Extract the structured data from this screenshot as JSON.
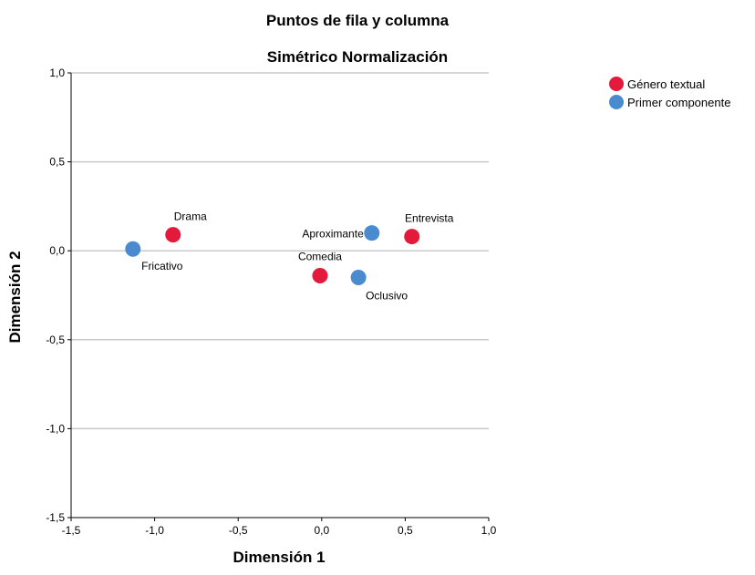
{
  "chart_data": {
    "type": "scatter",
    "title": "Puntos de fila y columna",
    "subtitle": "Simétrico Normalización",
    "xlabel": "Dimensión 1",
    "ylabel": "Dimensión 2",
    "xlim": [
      -1.5,
      1.0
    ],
    "ylim": [
      -1.5,
      1.0
    ],
    "xticks": [
      -1.5,
      -1.0,
      -0.5,
      0.0,
      0.5,
      1.0
    ],
    "yticks": [
      -1.5,
      -1.0,
      -0.5,
      0.0,
      0.5,
      1.0
    ],
    "xtick_labels": [
      "-1,5",
      "-1,0",
      "-0,5",
      "0,0",
      "0,5",
      "1,0"
    ],
    "ytick_labels": [
      "-1,5",
      "-1,0",
      "-0,5",
      "0,0",
      "0,5",
      "1,0"
    ],
    "grid": "horizontal",
    "legend_position": "top-right",
    "series": [
      {
        "name": "Género textual",
        "color": "#e31a3c",
        "points": [
          {
            "label": "Drama",
            "x": -0.89,
            "y": 0.09
          },
          {
            "label": "Comedia",
            "x": -0.01,
            "y": -0.14
          },
          {
            "label": "Entrevista",
            "x": 0.54,
            "y": 0.08
          }
        ]
      },
      {
        "name": "Primer componente",
        "color": "#4a8bd0",
        "points": [
          {
            "label": "Fricativo",
            "x": -1.13,
            "y": 0.01
          },
          {
            "label": "Aproximante",
            "x": 0.3,
            "y": 0.1
          },
          {
            "label": "Oclusivo",
            "x": 0.22,
            "y": -0.15
          }
        ]
      }
    ]
  }
}
